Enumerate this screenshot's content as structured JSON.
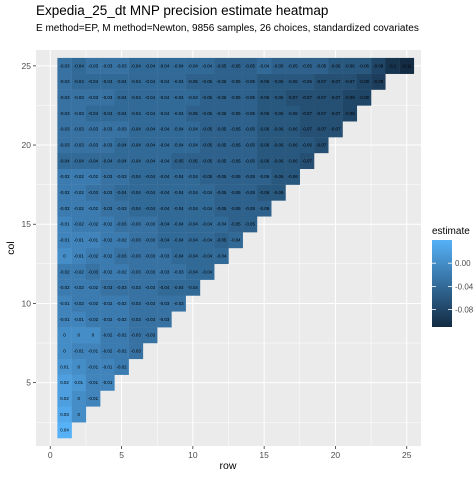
{
  "chart_data": {
    "type": "heatmap",
    "title": "Expedia_25_dt MNP precision estimate heatmap",
    "subtitle": "E method=EP, M method=Newton, 9856 samples, 26 choices, standardized covariates",
    "xlabel": "row",
    "ylabel": "col",
    "xlim": [
      -1,
      26
    ],
    "ylim": [
      1,
      26
    ],
    "x_ticks": [
      0,
      5,
      10,
      15,
      20,
      25
    ],
    "y_ticks": [
      5,
      10,
      15,
      20,
      25
    ],
    "legend": {
      "title": "estimate",
      "position": "right",
      "breaks": [
        0.0,
        -0.04,
        -0.08
      ],
      "break_labels": [
        "0.00",
        "-0.04",
        "-0.08"
      ],
      "range": [
        -0.11,
        0.04
      ],
      "low_color": "#132B43",
      "high_color": "#56B1F7"
    },
    "grid": true,
    "labels": {
      "2": [
        "0.04"
      ],
      "3": [
        "0.03",
        "0"
      ],
      "4": [
        "0.02",
        "0",
        "-0.01"
      ],
      "5": [
        "0.02",
        "0.01",
        "-0.01",
        "-0.01"
      ],
      "6": [
        "0.01",
        "0",
        "-0.01",
        "-0.01",
        "-0.02"
      ],
      "7": [
        "0",
        "-0.01",
        "-0.01",
        "-0.02",
        "-0.02",
        "-0.03"
      ],
      "8": [
        "0",
        "0",
        "0",
        "-0.02",
        "-0.02",
        "-0.03",
        "-0.03"
      ],
      "9": [
        "-0.01",
        "-0.01",
        "-0.02",
        "-0.02",
        "-0.02",
        "-0.03",
        "-0.03",
        "-0.03"
      ],
      "10": [
        "-0.01",
        "-0.02",
        "-0.02",
        "-0.02",
        "-0.02",
        "-0.03",
        "-0.03",
        "-0.03",
        "-0.03"
      ],
      "11": [
        "-0.02",
        "-0.02",
        "-0.02",
        "-0.03",
        "-0.03",
        "-0.03",
        "-0.03",
        "-0.04",
        "-0.04",
        "-0.04"
      ],
      "12": [
        "-0.02",
        "-0.02",
        "-0.03",
        "-0.02",
        "-0.02",
        "-0.03",
        "-0.03",
        "-0.03",
        "-0.03",
        "-0.04",
        "-0.04"
      ],
      "13": [
        "0",
        "-0.01",
        "-0.02",
        "-0.02",
        "-0.03",
        "-0.03",
        "-0.03",
        "-0.03",
        "-0.04",
        "-0.04",
        "-0.04",
        "-0.04"
      ],
      "14": [
        "-0.01",
        "-0.01",
        "-0.01",
        "-0.02",
        "-0.02",
        "-0.03",
        "-0.03",
        "-0.04",
        "-0.04",
        "-0.04",
        "-0.04",
        "-0.05",
        "-0.04"
      ],
      "15": [
        "-0.01",
        "-0.02",
        "-0.02",
        "-0.02",
        "-0.03",
        "-0.03",
        "-0.03",
        "-0.04",
        "-0.04",
        "-0.04",
        "-0.04",
        "-0.04",
        "-0.05",
        "-0.05"
      ],
      "16": [
        "-0.02",
        "-0.02",
        "-0.02",
        "-0.03",
        "-0.03",
        "-0.04",
        "-0.04",
        "-0.04",
        "-0.04",
        "-0.04",
        "-0.04",
        "-0.05",
        "-0.05",
        "-0.05",
        "-0.05"
      ],
      "17": [
        "-0.02",
        "-0.02",
        "-0.03",
        "-0.03",
        "-0.04",
        "-0.04",
        "-0.04",
        "-0.04",
        "-0.04",
        "-0.04",
        "-0.04",
        "-0.05",
        "-0.05",
        "-0.05",
        "-0.06",
        "-0.06"
      ],
      "18": [
        "-0.02",
        "-0.02",
        "-0.02",
        "-0.03",
        "-0.03",
        "-0.04",
        "-0.04",
        "-0.04",
        "-0.04",
        "-0.04",
        "-0.05",
        "-0.05",
        "-0.05",
        "-0.05",
        "-0.05",
        "-0.06",
        "-0.06"
      ],
      "19": [
        "-0.04",
        "-0.04",
        "-0.04",
        "-0.04",
        "-0.04",
        "-0.04",
        "-0.04",
        "-0.04",
        "-0.05",
        "-0.05",
        "-0.05",
        "-0.05",
        "-0.05",
        "-0.05",
        "-0.06",
        "-0.06",
        "-0.06",
        "-0.07"
      ],
      "20": [
        "-0.03",
        "-0.03",
        "-0.03",
        "-0.03",
        "-0.04",
        "-0.04",
        "-0.04",
        "-0.04",
        "-0.04",
        "-0.04",
        "-0.05",
        "-0.05",
        "-0.05",
        "-0.05",
        "-0.06",
        "-0.06",
        "-0.06",
        "-0.06",
        "-0.07"
      ],
      "21": [
        "-0.03",
        "-0.03",
        "-0.03",
        "-0.03",
        "-0.03",
        "-0.04",
        "-0.04",
        "-0.04",
        "-0.04",
        "-0.04",
        "-0.05",
        "-0.05",
        "-0.05",
        "-0.05",
        "-0.06",
        "-0.06",
        "-0.06",
        "-0.07",
        "-0.07",
        "-0.07"
      ],
      "22": [
        "-0.03",
        "-0.03",
        "-0.04",
        "-0.04",
        "-0.04",
        "-0.04",
        "-0.04",
        "-0.04",
        "-0.04",
        "-0.05",
        "-0.05",
        "-0.05",
        "-0.05",
        "-0.05",
        "-0.06",
        "-0.06",
        "-0.06",
        "-0.07",
        "-0.07",
        "-0.07",
        "-0.08"
      ],
      "23": [
        "-0.03",
        "-0.03",
        "-0.03",
        "-0.03",
        "-0.04",
        "-0.04",
        "-0.04",
        "-0.04",
        "-0.04",
        "-0.04",
        "-0.05",
        "-0.05",
        "-0.05",
        "-0.05",
        "-0.06",
        "-0.06",
        "-0.07",
        "-0.07",
        "-0.07",
        "-0.07",
        "-0.08",
        "-0.08"
      ],
      "24": [
        "-0.03",
        "-0.04",
        "-0.04",
        "-0.04",
        "-0.04",
        "-0.04",
        "-0.04",
        "-0.04",
        "-0.04",
        "-0.05",
        "-0.05",
        "-0.05",
        "-0.05",
        "-0.05",
        "-0.06",
        "-0.06",
        "-0.06",
        "-0.06",
        "-0.07",
        "-0.07",
        "-0.07",
        "-0.08",
        "-0.09"
      ],
      "25": [
        "-0.03",
        "-0.04",
        "-0.03",
        "-0.03",
        "-0.03",
        "-0.04",
        "-0.04",
        "-0.04",
        "-0.04",
        "-0.04",
        "-0.04",
        "-0.05",
        "-0.05",
        "-0.05",
        "-0.04",
        "-0.05",
        "-0.05",
        "-0.05",
        "-0.05",
        "-0.06",
        "-0.06",
        "-0.06",
        "-0.08",
        "-0.1",
        "-0.11"
      ]
    }
  }
}
